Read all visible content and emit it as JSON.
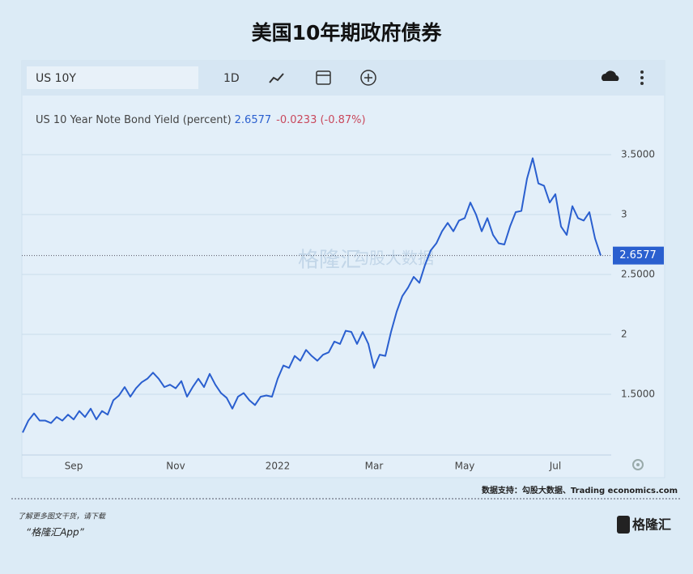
{
  "chart_data": {
    "type": "line",
    "title": "美国10年期政府债券",
    "ticker": "US 10Y",
    "interval": "1D",
    "change_label": "-0.0233 (-0.87%)",
    "categories": [
      null,
      null,
      null,
      null,
      null,
      null,
      null,
      null,
      null,
      "Sep",
      null,
      null,
      null,
      null,
      null,
      null,
      null,
      null,
      null,
      null,
      null,
      null,
      null,
      null,
      null,
      null,
      null,
      "Nov",
      null,
      null,
      null,
      null,
      null,
      null,
      null,
      null,
      null,
      null,
      null,
      null,
      null,
      null,
      null,
      null,
      null,
      "2022",
      null,
      null,
      null,
      null,
      null,
      null,
      null,
      null,
      null,
      null,
      null,
      null,
      null,
      null,
      null,
      null,
      "Mar",
      null,
      null,
      null,
      null,
      null,
      null,
      null,
      null,
      null,
      null,
      null,
      null,
      null,
      null,
      null,
      "May",
      null,
      null,
      null,
      null,
      null,
      null,
      null,
      null,
      null,
      null,
      null,
      null,
      null,
      null,
      null,
      "Jul",
      null,
      null,
      null,
      null,
      null,
      null,
      null,
      null
    ],
    "series": [
      {
        "name": "US 10 Year Note Bond Yield (percent)",
        "color": "#2a5fcf",
        "values": [
          1.18,
          1.28,
          1.34,
          1.28,
          1.28,
          1.26,
          1.31,
          1.28,
          1.33,
          1.29,
          1.36,
          1.31,
          1.38,
          1.29,
          1.36,
          1.33,
          1.45,
          1.49,
          1.56,
          1.48,
          1.55,
          1.6,
          1.63,
          1.68,
          1.63,
          1.56,
          1.58,
          1.55,
          1.61,
          1.48,
          1.56,
          1.63,
          1.56,
          1.67,
          1.58,
          1.51,
          1.47,
          1.38,
          1.48,
          1.51,
          1.45,
          1.41,
          1.48,
          1.49,
          1.48,
          1.63,
          1.74,
          1.72,
          1.82,
          1.78,
          1.87,
          1.82,
          1.78,
          1.83,
          1.85,
          1.94,
          1.92,
          2.03,
          2.02,
          1.92,
          2.02,
          1.92,
          1.72,
          1.83,
          1.82,
          2.02,
          2.19,
          2.32,
          2.39,
          2.48,
          2.43,
          2.58,
          2.7,
          2.76,
          2.86,
          2.93,
          2.86,
          2.95,
          2.97,
          3.1,
          3.0,
          2.86,
          2.97,
          2.83,
          2.76,
          2.75,
          2.9,
          3.02,
          3.03,
          3.3,
          3.47,
          3.26,
          3.24,
          3.1,
          3.17,
          2.9,
          2.83,
          3.07,
          2.97,
          2.95,
          3.02,
          2.8,
          2.6577
        ]
      }
    ],
    "ylim": [
      1,
      4
    ],
    "yticks": [
      {
        "value": 1.5,
        "label": "1.5000"
      },
      2,
      {
        "value": 2.5,
        "label": "2.5000"
      },
      3,
      {
        "value": 3.5,
        "label": "3.5000"
      }
    ],
    "grid": true,
    "watermark": [
      "格隆汇",
      "勾股大数据"
    ],
    "source": "数据支持：勾股大数据、Trading economics.com",
    "footer": {
      "line1": "了解更多图文干货，请下载",
      "line2": "“格隆汇App”",
      "logo": "格隆汇"
    }
  }
}
